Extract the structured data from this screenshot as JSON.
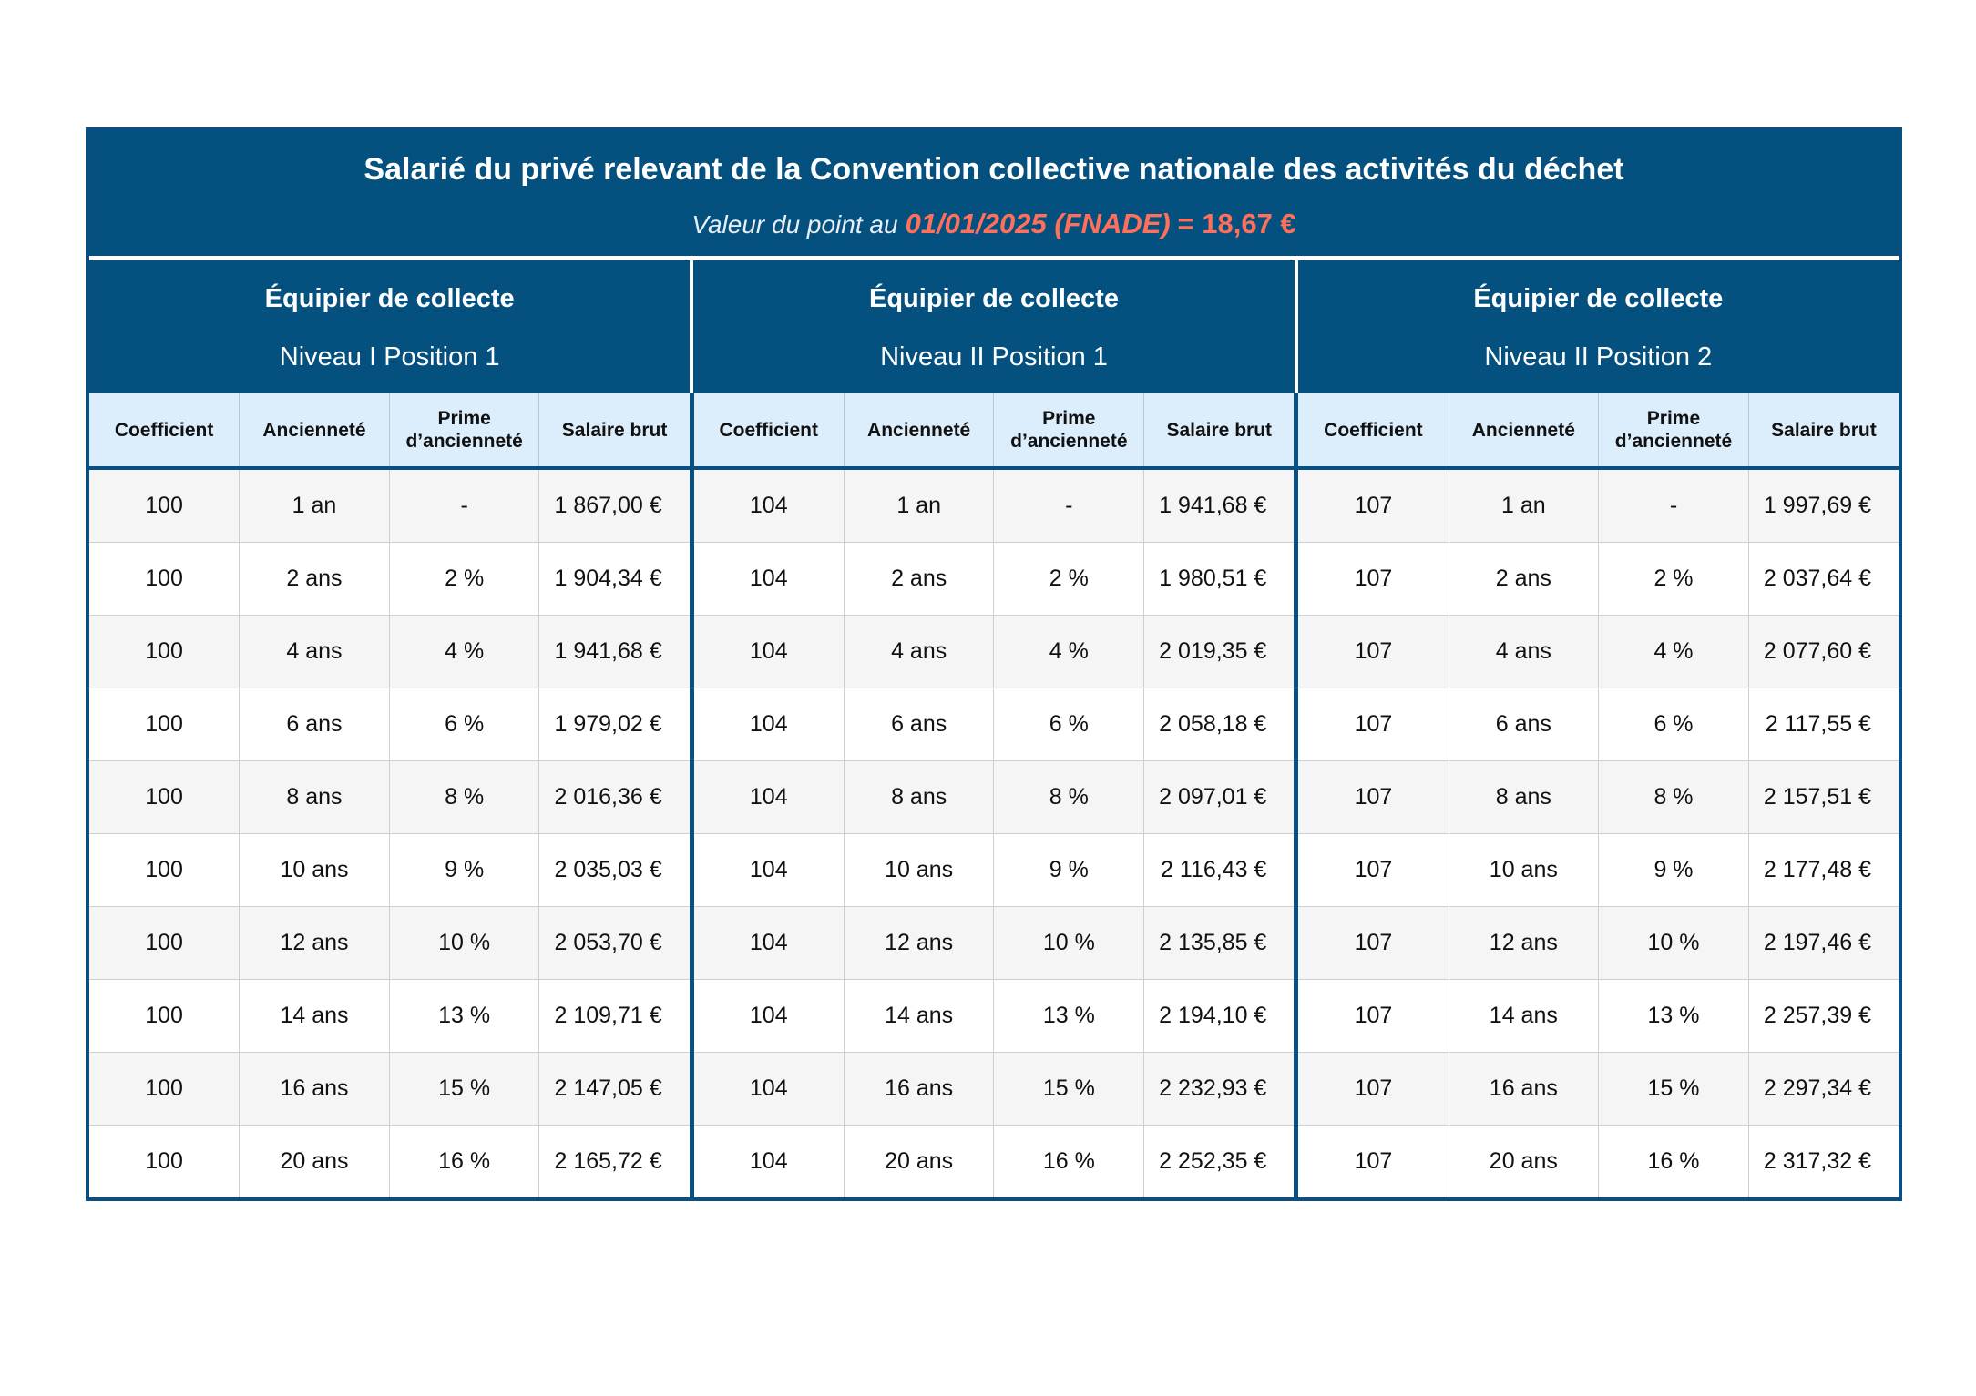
{
  "header": {
    "title": "Salarié du privé relevant de la Convention collective nationale des activités du déchet",
    "subtitle_label": "Valeur du point au",
    "subtitle_value": "01/01/2025 (FNADE)",
    "subtitle_equals": "= 18,67 €"
  },
  "columns": {
    "coefficient": "Coefficient",
    "anciennete": "Ancienneté",
    "prime": "Prime d’ancienneté",
    "salaire": "Salaire brut"
  },
  "groups": [
    {
      "title": "Équipier de collecte",
      "subtitle": "Niveau I Position 1",
      "rows": [
        [
          "100",
          "1 an",
          "-",
          "1 867,00 €"
        ],
        [
          "100",
          "2 ans",
          "2 %",
          "1 904,34 €"
        ],
        [
          "100",
          "4 ans",
          "4 %",
          "1 941,68 €"
        ],
        [
          "100",
          "6 ans",
          "6 %",
          "1 979,02 €"
        ],
        [
          "100",
          "8 ans",
          "8 %",
          "2 016,36 €"
        ],
        [
          "100",
          "10 ans",
          "9 %",
          "2 035,03 €"
        ],
        [
          "100",
          "12 ans",
          "10 %",
          "2 053,70 €"
        ],
        [
          "100",
          "14 ans",
          "13 %",
          "2 109,71 €"
        ],
        [
          "100",
          "16 ans",
          "15 %",
          "2 147,05 €"
        ],
        [
          "100",
          "20 ans",
          "16 %",
          "2 165,72 €"
        ]
      ]
    },
    {
      "title": "Équipier de collecte",
      "subtitle": "Niveau II Position 1",
      "rows": [
        [
          "104",
          "1 an",
          "-",
          "1 941,68 €"
        ],
        [
          "104",
          "2 ans",
          "2 %",
          "1 980,51 €"
        ],
        [
          "104",
          "4 ans",
          "4 %",
          "2 019,35 €"
        ],
        [
          "104",
          "6 ans",
          "6 %",
          "2 058,18 €"
        ],
        [
          "104",
          "8 ans",
          "8 %",
          "2 097,01 €"
        ],
        [
          "104",
          "10 ans",
          "9 %",
          "2 116,43 €"
        ],
        [
          "104",
          "12 ans",
          "10 %",
          "2 135,85 €"
        ],
        [
          "104",
          "14 ans",
          "13 %",
          "2 194,10 €"
        ],
        [
          "104",
          "16 ans",
          "15 %",
          "2 232,93 €"
        ],
        [
          "104",
          "20 ans",
          "16 %",
          "2 252,35 €"
        ]
      ]
    },
    {
      "title": "Équipier de collecte",
      "subtitle": "Niveau II Position 2",
      "rows": [
        [
          "107",
          "1 an",
          "-",
          "1 997,69 €"
        ],
        [
          "107",
          "2 ans",
          "2 %",
          "2 037,64 €"
        ],
        [
          "107",
          "4 ans",
          "4 %",
          "2 077,60 €"
        ],
        [
          "107",
          "6 ans",
          "6 %",
          "2 117,55 €"
        ],
        [
          "107",
          "8 ans",
          "8 %",
          "2 157,51 €"
        ],
        [
          "107",
          "10 ans",
          "9 %",
          "2 177,48 €"
        ],
        [
          "107",
          "12 ans",
          "10 %",
          "2 197,46 €"
        ],
        [
          "107",
          "14 ans",
          "13 %",
          "2 257,39 €"
        ],
        [
          "107",
          "16 ans",
          "15 %",
          "2 297,34 €"
        ],
        [
          "107",
          "20 ans",
          "16 %",
          "2 317,32 €"
        ]
      ]
    }
  ],
  "colors": {
    "header_blue": "#04507f",
    "accent_red": "#ff6f5a",
    "column_header_bg": "#dcedfb",
    "row_alt_bg": "#f5f5f5"
  }
}
